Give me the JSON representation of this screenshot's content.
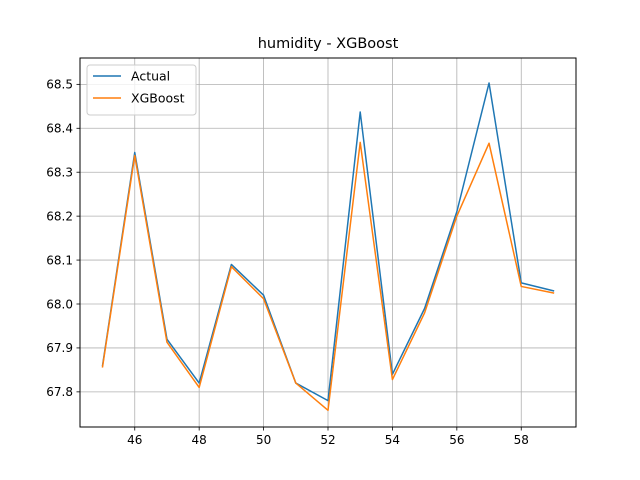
{
  "chart_data": {
    "type": "line",
    "title": "humidity - XGBoost",
    "xlabel": "",
    "ylabel": "",
    "xlim": [
      44.3,
      59.7
    ],
    "ylim": [
      67.72,
      68.56
    ],
    "xticks": [
      46,
      48,
      50,
      52,
      54,
      56,
      58
    ],
    "yticks": [
      67.8,
      67.9,
      68.0,
      68.1,
      68.2,
      68.3,
      68.4,
      68.5
    ],
    "ytick_labels": [
      "67.8",
      "67.9",
      "68.0",
      "68.1",
      "68.2",
      "68.3",
      "68.4",
      "68.5"
    ],
    "grid": true,
    "legend_position": "upper-left",
    "x": [
      45,
      46,
      47,
      48,
      49,
      50,
      51,
      52,
      53,
      54,
      55,
      56,
      57,
      58,
      59
    ],
    "series": [
      {
        "name": "Actual",
        "color": "#1f77b4",
        "values": [
          67.86,
          68.345,
          67.92,
          67.82,
          68.09,
          68.02,
          67.82,
          67.78,
          68.437,
          67.84,
          67.99,
          68.21,
          68.503,
          68.048,
          68.03
        ]
      },
      {
        "name": "XGBoost",
        "color": "#ff7f0e",
        "values": [
          67.857,
          68.338,
          67.913,
          67.81,
          68.085,
          68.012,
          67.82,
          67.758,
          68.368,
          67.828,
          67.98,
          68.2,
          68.366,
          68.04,
          68.025
        ]
      }
    ]
  }
}
